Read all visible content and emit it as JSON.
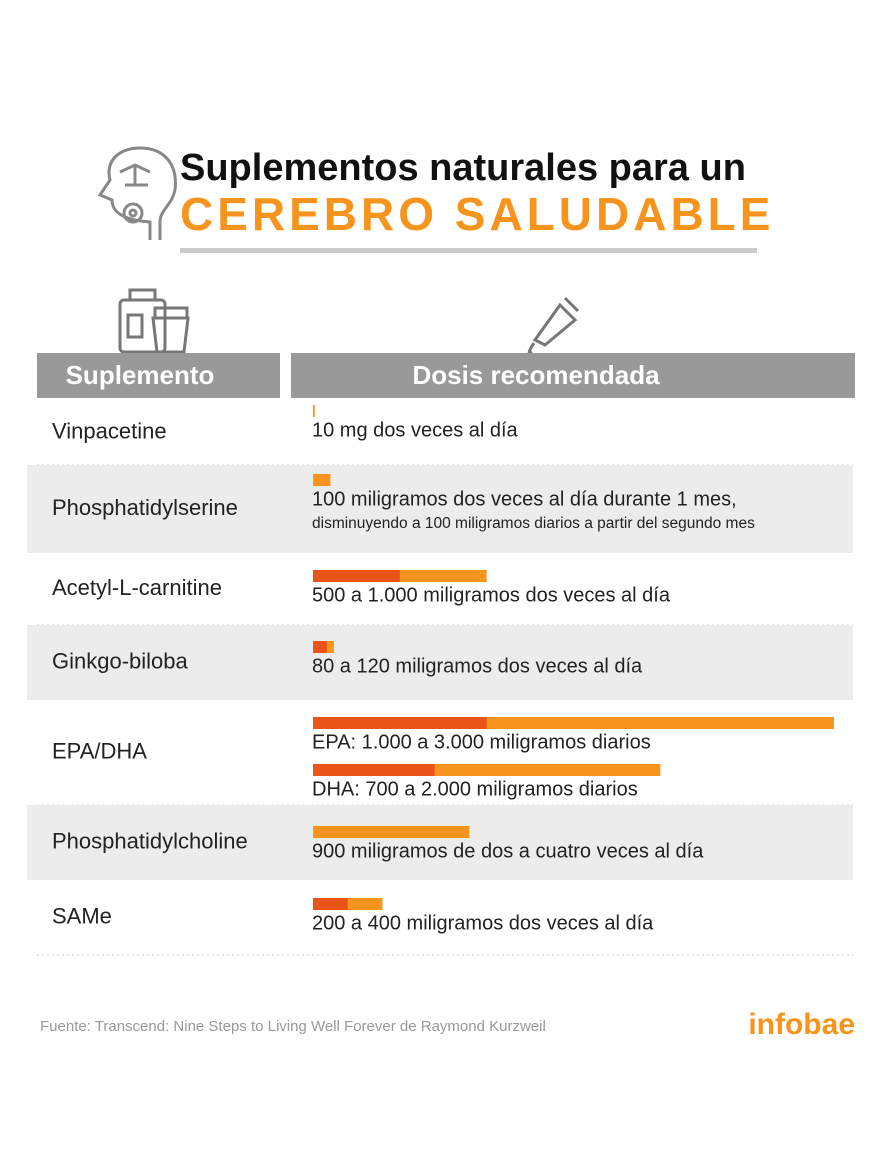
{
  "header": {
    "title": "Suplementos naturales para un",
    "highlight": "CEREBRO SALUDABLE"
  },
  "table": {
    "columns": [
      "Suplemento",
      "Dosis recomendada"
    ],
    "rows": [
      {
        "name": "Vinpacetine",
        "doses": [
          {
            "text": "10 mg dos veces al día",
            "min": 10
          }
        ]
      },
      {
        "name": "Phosphatidylserine",
        "doses": [
          {
            "text": "100 miligramos dos veces al día durante 1 mes,",
            "note": "disminuyendo a 100 miligramos diarios a partir del segundo mes",
            "min": 100
          }
        ]
      },
      {
        "name": "Acetyl-L-carnitine",
        "doses": [
          {
            "text": "500 a 1.000 miligramos dos veces al día",
            "min": 500,
            "max": 1000
          }
        ]
      },
      {
        "name": "Ginkgo-biloba",
        "doses": [
          {
            "text": "80 a 120 miligramos dos veces al día",
            "min": 80,
            "max": 120
          }
        ]
      },
      {
        "name": "EPA/DHA",
        "doses": [
          {
            "text": "EPA: 1.000 a 3.000 miligramos diarios",
            "min": 1000,
            "max": 3000
          },
          {
            "text": "DHA: 700 a 2.000 miligramos diarios",
            "min": 700,
            "max": 2000
          }
        ]
      },
      {
        "name": "Phosphatidylcholine",
        "doses": [
          {
            "text": "900 miligramos de dos a cuatro veces al día",
            "min": 900
          }
        ]
      },
      {
        "name": "SAMe",
        "doses": [
          {
            "text": "200 a 400 miligramos dos veces al día",
            "min": 200,
            "max": 400
          }
        ]
      }
    ]
  },
  "footer": {
    "source": "Fuente: Transcend: Nine Steps to Living Well Forever de Raymond Kurzweil",
    "brand": "infobae"
  }
}
